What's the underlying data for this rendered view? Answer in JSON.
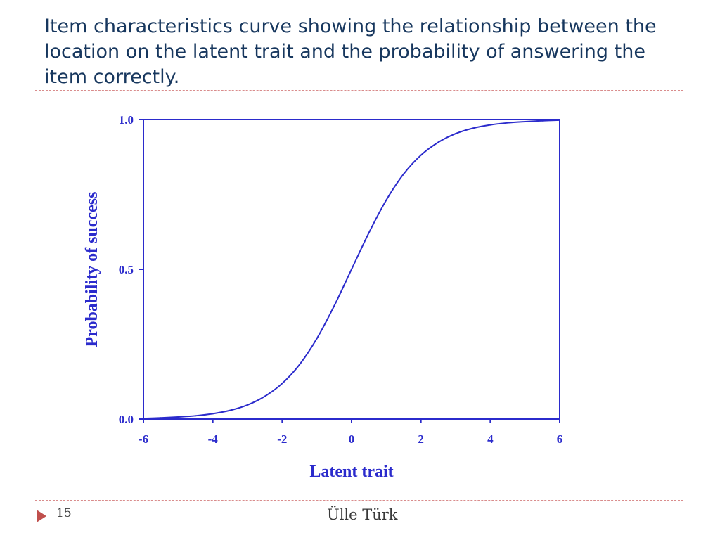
{
  "slide": {
    "title": "Item characteristics curve showing the relationship between the location on the latent trait and the probability of answering the item correctly.",
    "page_number": "15",
    "author": "Ülle Türk"
  },
  "colors": {
    "title": "#17375e",
    "chart": "#2b2bcc",
    "divider": "#d98c8c",
    "marker": "#c0504d"
  },
  "icons": {
    "footer_marker": "triangle-right-icon"
  },
  "chart_data": {
    "type": "line",
    "title": "",
    "xlabel": "Latent trait",
    "ylabel": "Probability of success",
    "xlim": [
      -6,
      6
    ],
    "ylim": [
      0,
      1
    ],
    "x_ticks": [
      "-6",
      "-4",
      "-2",
      "0",
      "2",
      "4",
      "6"
    ],
    "y_ticks": [
      "0.0",
      "0.5",
      "1.0"
    ],
    "grid": false,
    "legend": "none",
    "series": [
      {
        "x": [
          -6,
          -5.5,
          -5,
          -4.5,
          -4,
          -3.5,
          -3,
          -2.5,
          -2,
          -1.5,
          -1,
          -0.5,
          0,
          0.5,
          1,
          1.5,
          2,
          2.5,
          3,
          3.5,
          4,
          4.5,
          5,
          5.5,
          6
        ],
        "values": [
          0.002,
          0.004,
          0.007,
          0.011,
          0.018,
          0.029,
          0.047,
          0.076,
          0.119,
          0.182,
          0.269,
          0.378,
          0.5,
          0.622,
          0.731,
          0.818,
          0.881,
          0.924,
          0.953,
          0.971,
          0.982,
          0.989,
          0.993,
          0.996,
          0.998
        ]
      }
    ]
  }
}
